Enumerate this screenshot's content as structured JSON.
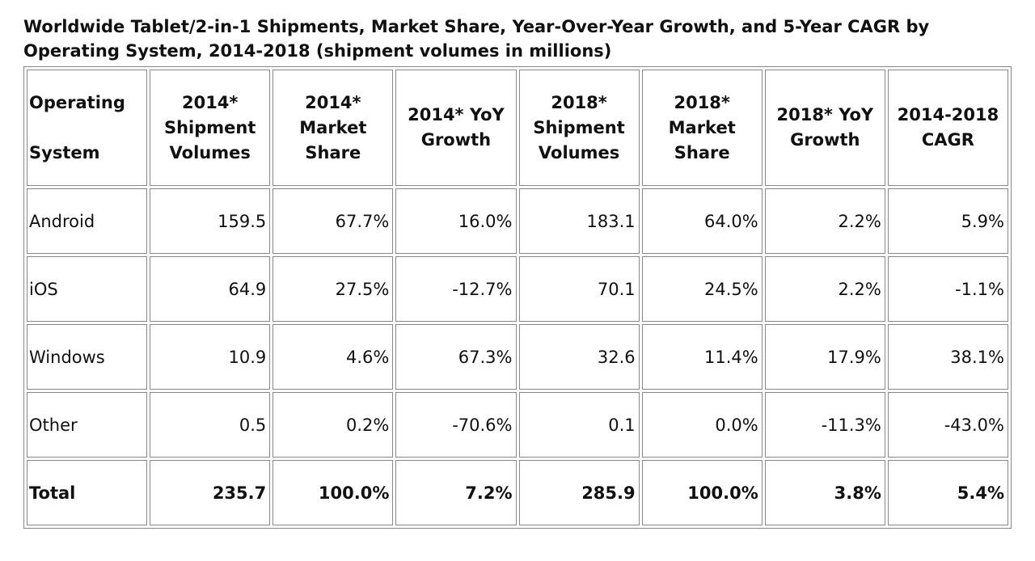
{
  "header": {
    "title": "Worldwide Tablet/2-in-1 Shipments, Market Share, Year-Over-Year Growth, and 5-Year CAGR by Operating System, 2014-2018 (shipment volumes in millions)"
  },
  "table": {
    "columns": [
      "Operating System",
      "2014* Shipment Volumes",
      "2014* Market Share",
      "2014* YoY Growth",
      "2018* Shipment Volumes",
      "2018* Market Share",
      "2018* YoY Growth",
      "2014-2018 CAGR"
    ],
    "rows": [
      [
        "Android",
        "159.5",
        "67.7%",
        "16.0%",
        "183.1",
        "64.0%",
        "2.2%",
        "5.9%"
      ],
      [
        "iOS",
        "64.9",
        "27.5%",
        "-12.7%",
        "70.1",
        "24.5%",
        "2.2%",
        "-1.1%"
      ],
      [
        "Windows",
        "10.9",
        "4.6%",
        "67.3%",
        "32.6",
        "11.4%",
        "17.9%",
        "38.1%"
      ],
      [
        "Other",
        "0.5",
        "0.2%",
        "-70.6%",
        "0.1",
        "0.0%",
        "-11.3%",
        "-43.0%"
      ],
      [
        "Total",
        "235.7",
        "100.0%",
        "7.2%",
        "285.9",
        "100.0%",
        "3.8%",
        "5.4%"
      ]
    ]
  }
}
